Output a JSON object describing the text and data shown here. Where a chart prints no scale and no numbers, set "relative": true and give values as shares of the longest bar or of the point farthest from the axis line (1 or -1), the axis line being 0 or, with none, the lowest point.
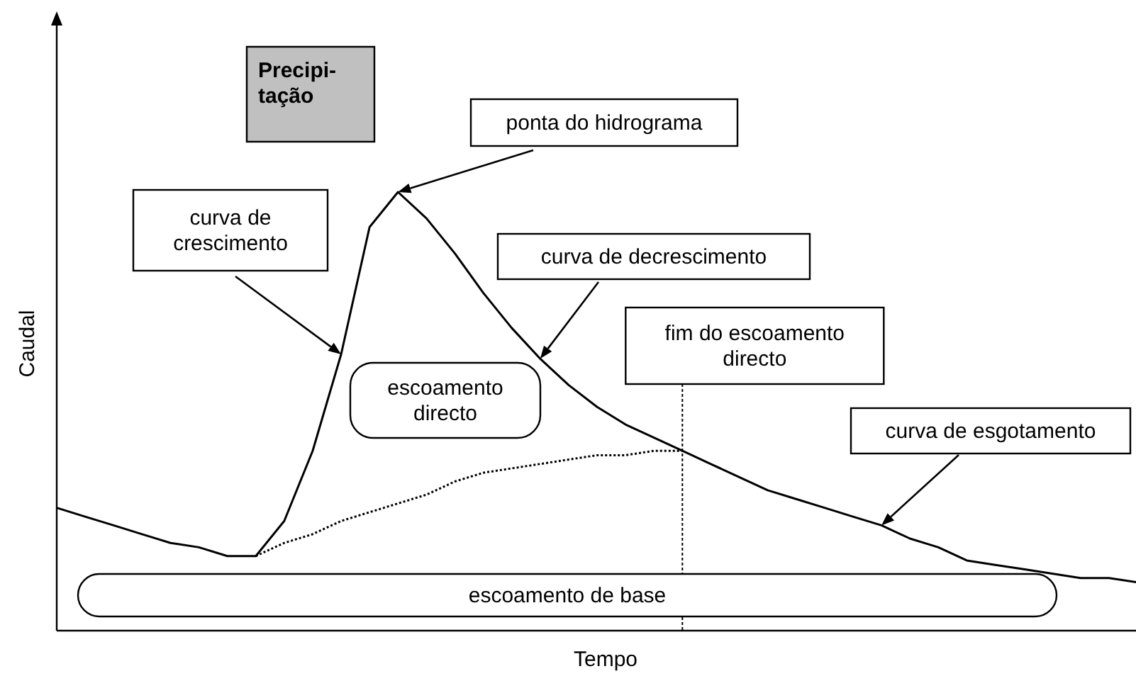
{
  "chart_data": {
    "type": "line",
    "relative": true,
    "xlabel": "Tempo",
    "ylabel": "Caudal",
    "categories": [
      null,
      null,
      null,
      null,
      null,
      null,
      null,
      null,
      null,
      null,
      null,
      null,
      null,
      null,
      null,
      null,
      null,
      null,
      null,
      null,
      null,
      null,
      null,
      null,
      null,
      null,
      null,
      null,
      null,
      null,
      null,
      null,
      null,
      null,
      null,
      null,
      null,
      null,
      null
    ],
    "series": [
      {
        "color": "#000000",
        "line_style": "solid",
        "values": [
          0.28,
          0.26,
          0.24,
          0.22,
          0.2,
          0.19,
          0.17,
          0.17,
          0.25,
          0.41,
          0.63,
          0.92,
          1,
          0.94,
          0.86,
          0.77,
          0.69,
          0.62,
          0.56,
          0.51,
          0.47,
          0.44,
          0.41,
          0.38,
          0.35,
          0.32,
          0.3,
          0.28,
          0.26,
          0.24,
          0.21,
          0.19,
          0.16,
          0.15,
          0.14,
          0.13,
          0.12,
          0.12,
          0.11
        ]
      },
      {
        "color": "#000000",
        "line_style": "dotted",
        "values": [
          null,
          null,
          null,
          null,
          null,
          null,
          null,
          0.17,
          0.2,
          0.22,
          0.25,
          0.27,
          0.29,
          0.31,
          0.34,
          0.36,
          0.37,
          0.38,
          0.39,
          0.4,
          0.4,
          0.41,
          0.41,
          null,
          null,
          null,
          null,
          null,
          null,
          null,
          null,
          null,
          null,
          null,
          null,
          null,
          null,
          null,
          null
        ]
      }
    ],
    "annotations": [
      "Precipi-\ntação",
      "ponta do hidrograma",
      "curva de\ncrescimento",
      "curva de decrescimento",
      "escoamento\ndirecto",
      "fim do escoamento\ndirecto",
      "curva de esgotamento",
      "escoamento de base"
    ]
  }
}
